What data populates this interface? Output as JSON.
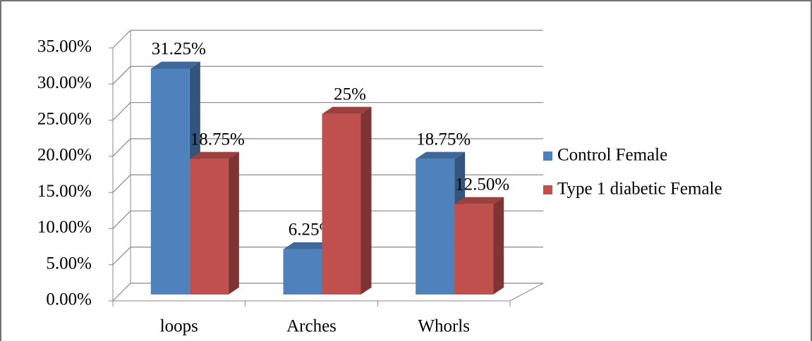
{
  "chart_data": {
    "type": "bar3d",
    "categories": [
      "loops",
      "Arches",
      "Whorls"
    ],
    "series": [
      {
        "name": "Control Female",
        "color": "#4f81bd",
        "values": [
          31.25,
          6.25,
          18.75
        ],
        "value_labels": [
          "31.25%",
          "6.25%",
          "18.75%"
        ]
      },
      {
        "name": "Type 1 diabetic Female",
        "color": "#c0504d",
        "values": [
          18.75,
          25,
          12.5
        ],
        "value_labels": [
          "18.75%",
          "25%",
          "12.50%"
        ]
      }
    ],
    "ylim": [
      0,
      35
    ],
    "yticks": [
      {
        "value": 0,
        "label": "0.00%"
      },
      {
        "value": 5,
        "label": "5.00%"
      },
      {
        "value": 10,
        "label": "10.00%"
      },
      {
        "value": 15,
        "label": "15.00%"
      },
      {
        "value": 20,
        "label": "20.00%"
      },
      {
        "value": 25,
        "label": "25.00%"
      },
      {
        "value": 30,
        "label": "30.00%"
      },
      {
        "value": 35,
        "label": "35.00%"
      }
    ],
    "grid": true,
    "legend": "right"
  }
}
